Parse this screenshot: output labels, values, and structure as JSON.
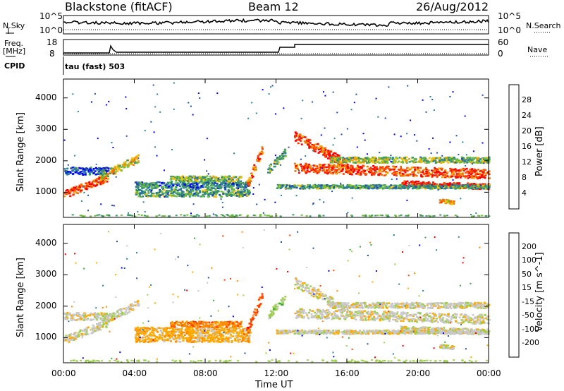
{
  "header": {
    "station": "Blackstone (fitACF)",
    "beam": "Beam 12",
    "date": "26/Aug/2012"
  },
  "top_labels": {
    "nsky": "N.Sky",
    "nsearch": "N.Search",
    "freq": "Freq.",
    "freq_unit": "[MHz]",
    "nave": "Nave",
    "cpid": "CPID",
    "cpid_value": "tau (fast) 503",
    "nsky_ticks": [
      "10^5",
      "10^0"
    ],
    "freq_ticks": [
      "18",
      "8"
    ],
    "nave_ticks": [
      "60",
      "0"
    ]
  },
  "colors": {
    "power": [
      "#0000ff",
      "#1e4fa8",
      "#2e7f9a",
      "#3c9a62",
      "#6fbf3c",
      "#f2c20a",
      "#f5a000",
      "#f57000",
      "#ff3a00",
      "#ff0000"
    ],
    "velocity": [
      "#ff0000",
      "#ff4400",
      "#ff8800",
      "#ffaa00",
      "#c8c8c8",
      "#9ccf4a",
      "#3aa63a",
      "#2f7f9a",
      "#1e4fa8",
      "#0000ff"
    ]
  },
  "chart_data": [
    {
      "type": "heatmap",
      "name": "power",
      "ylabel": "Slant Range [km]",
      "xlabel": "Time UT",
      "xticks": [
        "00:00",
        "04:00",
        "08:00",
        "12:00",
        "16:00",
        "20:00",
        "00:00"
      ],
      "yticks": [
        "1000",
        "2000",
        "3000",
        "4000"
      ],
      "ylim": [
        200,
        4600
      ],
      "colorbar_label": "Power [dB]",
      "colorbar_ticks": [
        "28",
        "24",
        "20",
        "16",
        "12",
        "8",
        "4"
      ]
    },
    {
      "type": "heatmap",
      "name": "velocity",
      "ylabel": "Slant Range [km]",
      "xlabel": "Time UT",
      "xticks": [
        "00:00",
        "04:00",
        "08:00",
        "12:00",
        "16:00",
        "20:00",
        "00:00"
      ],
      "yticks": [
        "1000",
        "2000",
        "3000",
        "4000"
      ],
      "ylim": [
        200,
        4600
      ],
      "colorbar_label": "Velocity [m s^-1]",
      "colorbar_ticks": [
        "200",
        "100",
        "50",
        "15",
        "-15",
        "-50",
        "-100",
        "-200"
      ]
    }
  ]
}
